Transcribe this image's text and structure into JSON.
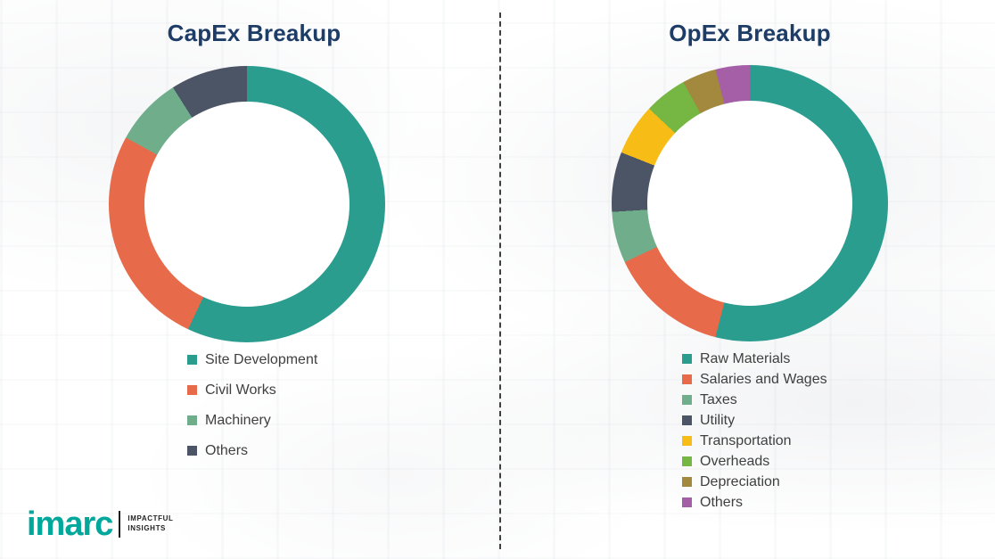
{
  "chart_data": [
    {
      "type": "pie",
      "subtype": "donut",
      "title": "CapEx Breakup",
      "legend_position": "bottom",
      "value_format": "percent_share_estimated",
      "segments": [
        {
          "label": "Site Development",
          "value": 57,
          "color": "#2a9d8f"
        },
        {
          "label": "Civil Works",
          "value": 26,
          "color": "#e76a4a"
        },
        {
          "label": "Machinery",
          "value": 8,
          "color": "#6fad8b"
        },
        {
          "label": "Others",
          "value": 9,
          "color": "#4c5566"
        }
      ]
    },
    {
      "type": "pie",
      "subtype": "donut",
      "title": "OpEx Breakup",
      "legend_position": "bottom",
      "value_format": "percent_share_estimated",
      "segments": [
        {
          "label": "Raw Materials",
          "value": 54,
          "color": "#2a9d8f"
        },
        {
          "label": "Salaries and Wages",
          "value": 14,
          "color": "#e76a4a"
        },
        {
          "label": "Taxes",
          "value": 6,
          "color": "#6fad8b"
        },
        {
          "label": "Utility",
          "value": 7,
          "color": "#4c5566"
        },
        {
          "label": "Transportation",
          "value": 6,
          "color": "#f7bd16"
        },
        {
          "label": "Overheads",
          "value": 5,
          "color": "#76b643"
        },
        {
          "label": "Depreciation",
          "value": 4,
          "color": "#a3893d"
        },
        {
          "label": "Others",
          "value": 4,
          "color": "#a45fa7"
        }
      ]
    }
  ],
  "logo": {
    "brand": "imarc",
    "tagline": [
      "IMPACTFUL",
      "INSIGHTS"
    ],
    "brand_color": "#00a79b"
  }
}
